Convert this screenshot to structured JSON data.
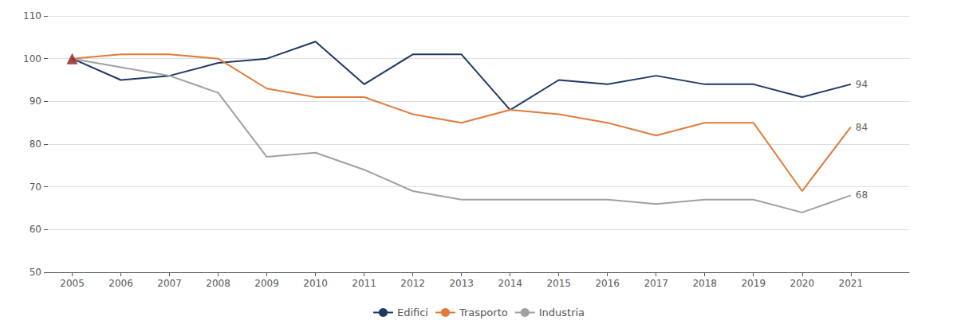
{
  "chart_data": {
    "type": "line",
    "x": [
      2005,
      2006,
      2007,
      2008,
      2009,
      2010,
      2011,
      2012,
      2013,
      2014,
      2015,
      2016,
      2017,
      2018,
      2019,
      2020,
      2021
    ],
    "series": [
      {
        "name": "Edifici",
        "color": "#1f3864",
        "values": [
          100,
          95,
          96,
          99,
          100,
          104,
          94,
          101,
          101,
          88,
          95,
          94,
          96,
          94,
          94,
          91,
          94
        ]
      },
      {
        "name": "Trasporto",
        "color": "#e07b39",
        "values": [
          100,
          101,
          101,
          100,
          93,
          91,
          91,
          87,
          85,
          88,
          87,
          85,
          82,
          85,
          85,
          69,
          84
        ]
      },
      {
        "name": "Industria",
        "color": "#a0a0a0",
        "values": [
          100,
          98,
          96,
          92,
          77,
          78,
          74,
          69,
          67,
          67,
          67,
          67,
          66,
          67,
          67,
          64,
          68
        ]
      },
      {
        "type": "scatter",
        "marker": "triangle",
        "color": "#8b1a1a",
        "x": [
          2005
        ],
        "values": [
          100
        ]
      }
    ],
    "annotations": [
      {
        "x": 2021,
        "y": 94,
        "text": "94"
      },
      {
        "x": 2021,
        "y": 84,
        "text": "84"
      },
      {
        "x": 2021,
        "y": 68,
        "text": "68"
      }
    ],
    "xlim": [
      2004.5,
      2022.2
    ],
    "xticks": [
      2005,
      2006,
      2007,
      2008,
      2009,
      2010,
      2011,
      2012,
      2013,
      2014,
      2015,
      2016,
      2017,
      2018,
      2019,
      2020,
      2021
    ],
    "ylim": [
      50,
      110
    ],
    "yticks": [
      50,
      60,
      70,
      80,
      90,
      100,
      110
    ],
    "grid": true,
    "legend": "bottom"
  }
}
